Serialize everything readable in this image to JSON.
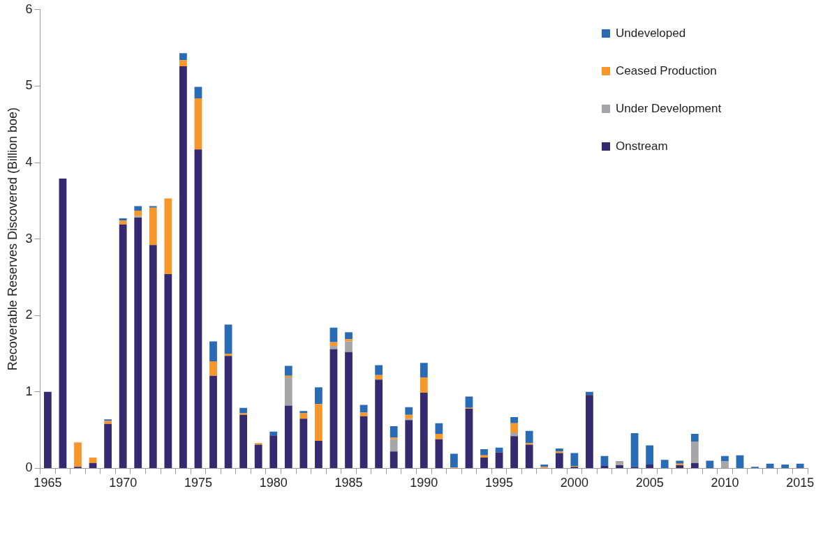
{
  "chart_data": {
    "type": "bar",
    "stacked": true,
    "ylabel": "Recoverable Reserves Discovered (Billion boe)",
    "categories": [
      "1965",
      null,
      null,
      null,
      null,
      "1970",
      null,
      null,
      null,
      null,
      "1975",
      null,
      null,
      null,
      null,
      "1980",
      null,
      null,
      null,
      null,
      "1985",
      null,
      null,
      null,
      null,
      "1990",
      null,
      null,
      null,
      null,
      "1995",
      null,
      null,
      null,
      null,
      "2000",
      null,
      null,
      null,
      null,
      "2005",
      null,
      null,
      null,
      null,
      "2010",
      null,
      null,
      null,
      null,
      "2015"
    ],
    "series": [
      {
        "name": "Onstream",
        "color": "#352a6f",
        "values": [
          1.0,
          3.79,
          0.02,
          0.07,
          0.58,
          3.19,
          3.28,
          2.92,
          2.54,
          5.26,
          4.17,
          1.21,
          1.47,
          0.7,
          0.31,
          0.43,
          0.82,
          0.65,
          0.36,
          1.56,
          1.52,
          0.68,
          1.16,
          0.22,
          0.63,
          0.99,
          0.38,
          0,
          0.78,
          0.14,
          0.21,
          0.42,
          0.31,
          0,
          0.2,
          0.02,
          0.96,
          0.03,
          0.04,
          0.02,
          0.05,
          0,
          0.04,
          0.07,
          0,
          0,
          0,
          0,
          0,
          0,
          0
        ]
      },
      {
        "name": "Under Development",
        "color": "#a6a6a8",
        "values": [
          0,
          0,
          0,
          0,
          0,
          0,
          0.02,
          0,
          0,
          0,
          0,
          0,
          0,
          0,
          0,
          0,
          0.37,
          0,
          0,
          0.04,
          0.14,
          0,
          0,
          0.16,
          0.02,
          0,
          0,
          0,
          0,
          0,
          0,
          0.05,
          0,
          0,
          0,
          0,
          0,
          0,
          0.03,
          0,
          0,
          0,
          0,
          0.28,
          0,
          0.09,
          0,
          0,
          0,
          0,
          0
        ]
      },
      {
        "name": "Ceased Production",
        "color": "#f7962b",
        "values": [
          0,
          0,
          0.32,
          0.07,
          0.04,
          0.05,
          0.07,
          0.49,
          0.99,
          0.08,
          0.67,
          0.19,
          0.03,
          0.02,
          0.02,
          0,
          0.02,
          0.07,
          0.48,
          0.05,
          0.03,
          0.05,
          0.06,
          0.02,
          0.05,
          0.2,
          0.07,
          0.01,
          0.01,
          0.03,
          0,
          0.12,
          0.02,
          0.02,
          0.02,
          0.01,
          0,
          0,
          0.01,
          0,
          0,
          0,
          0.02,
          0,
          0,
          0,
          0,
          0,
          0,
          0,
          0
        ]
      },
      {
        "name": "Undeveloped",
        "color": "#2a6bb5",
        "values": [
          0,
          0,
          0,
          0,
          0.02,
          0.03,
          0.06,
          0.02,
          0,
          0.09,
          0.15,
          0.26,
          0.38,
          0.07,
          0,
          0.05,
          0.13,
          0.03,
          0.22,
          0.19,
          0.09,
          0.1,
          0.13,
          0.15,
          0.1,
          0.19,
          0.14,
          0.18,
          0.15,
          0.08,
          0.06,
          0.08,
          0.16,
          0.03,
          0.04,
          0.17,
          0.04,
          0.13,
          0.01,
          0.44,
          0.25,
          0.11,
          0.04,
          0.1,
          0.1,
          0.07,
          0.17,
          0.02,
          0.06,
          0.05,
          0.06
        ]
      }
    ],
    "ylim": [
      0,
      6
    ],
    "yticks": [
      0,
      1,
      2,
      3,
      4,
      5,
      6
    ],
    "legend": "top right"
  }
}
